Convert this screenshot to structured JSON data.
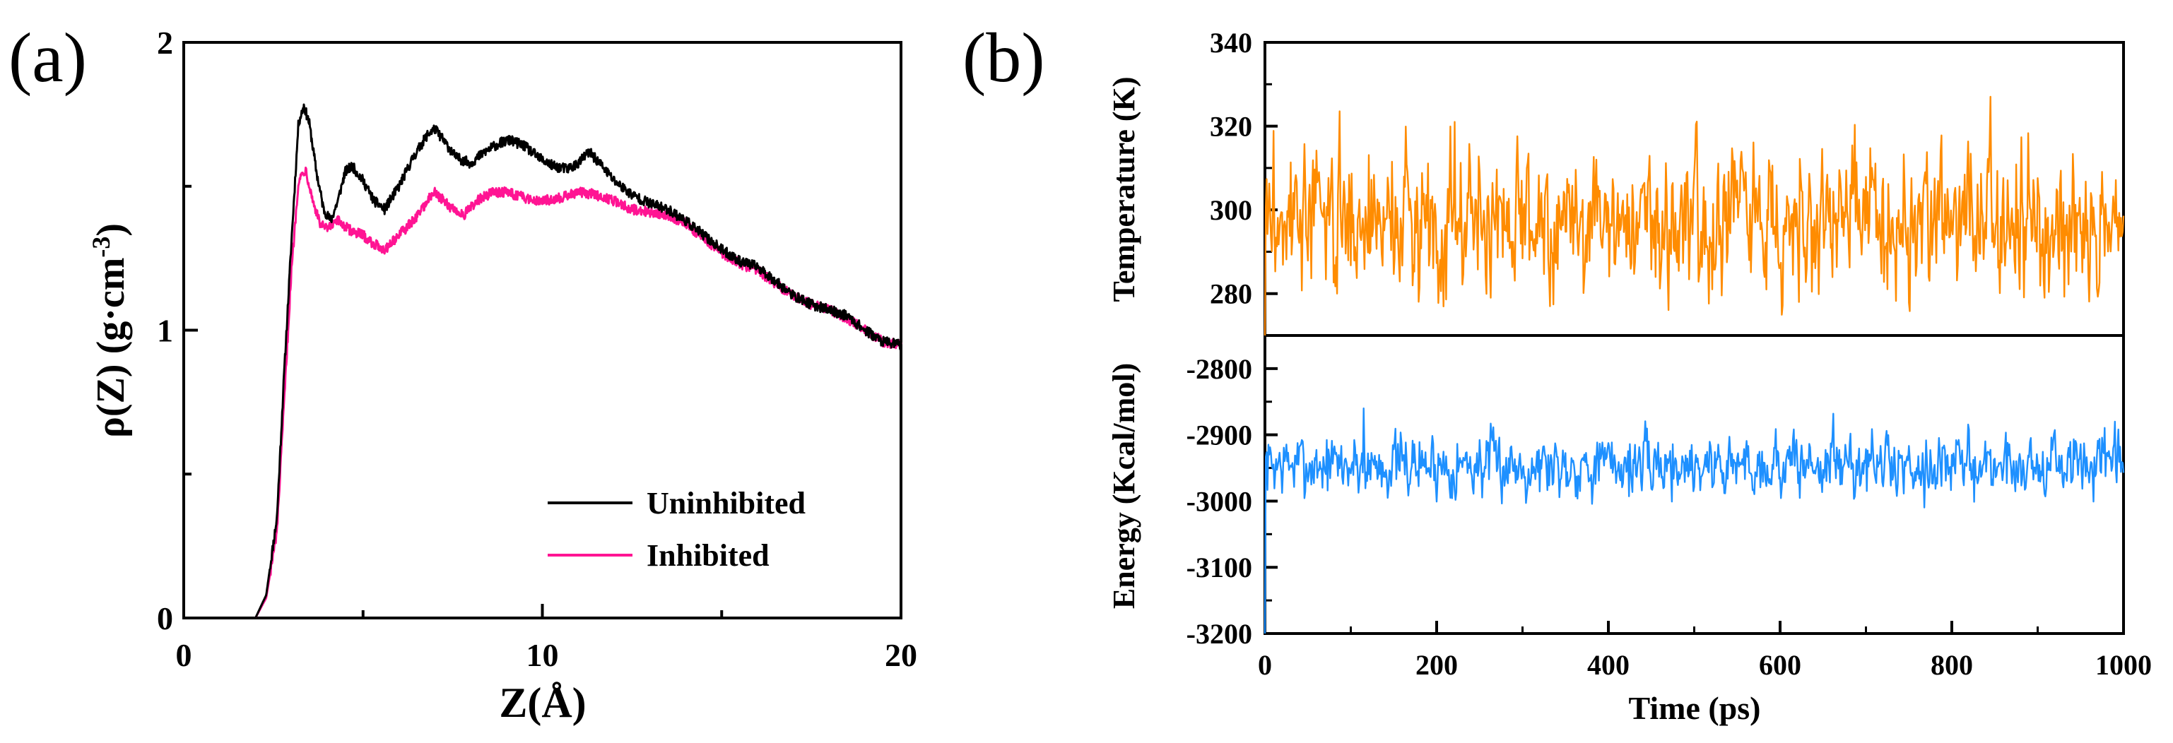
{
  "chart_data": [
    {
      "panel": "(a)",
      "type": "line",
      "xlabel": "Z(Å)",
      "ylabel_parts": [
        "ρ(Z) (g·cm",
        "-3",
        ")"
      ],
      "xlim": [
        0,
        20
      ],
      "ylim": [
        0,
        2
      ],
      "xticks": [
        "0",
        "10",
        "20"
      ],
      "yticks": [
        "0",
        "1",
        "2"
      ],
      "legend_position": "bottom-right",
      "series": [
        {
          "name": "Uninhibited",
          "color": "#000000",
          "x": [
            2.0,
            2.3,
            2.6,
            2.8,
            3.0,
            3.2,
            3.35,
            3.5,
            3.7,
            3.9,
            4.1,
            4.3,
            4.5,
            4.7,
            5.0,
            5.3,
            5.6,
            6.0,
            6.4,
            6.8,
            7.0,
            7.3,
            7.6,
            8.0,
            8.4,
            8.8,
            9.1,
            9.5,
            9.9,
            10.3,
            10.7,
            11.0,
            11.3,
            11.6,
            12.0,
            12.5,
            13.0,
            13.5,
            14.0,
            14.5,
            15.0,
            15.5,
            16.0,
            16.5,
            17.0,
            17.5,
            18.0,
            18.5,
            19.0,
            19.5,
            20.0
          ],
          "values": [
            0.0,
            0.08,
            0.35,
            0.85,
            1.3,
            1.72,
            1.78,
            1.72,
            1.55,
            1.42,
            1.38,
            1.45,
            1.55,
            1.57,
            1.52,
            1.45,
            1.42,
            1.5,
            1.6,
            1.68,
            1.7,
            1.65,
            1.6,
            1.58,
            1.62,
            1.65,
            1.66,
            1.64,
            1.6,
            1.57,
            1.56,
            1.58,
            1.62,
            1.58,
            1.52,
            1.47,
            1.44,
            1.42,
            1.38,
            1.33,
            1.28,
            1.24,
            1.22,
            1.17,
            1.12,
            1.09,
            1.07,
            1.05,
            1.0,
            0.96,
            0.95
          ]
        },
        {
          "name": "Inhibited",
          "color": "#ff1493",
          "x": [
            2.0,
            2.3,
            2.6,
            2.8,
            3.0,
            3.2,
            3.4,
            3.6,
            3.8,
            4.0,
            4.3,
            4.6,
            5.0,
            5.3,
            5.6,
            6.0,
            6.4,
            6.8,
            7.0,
            7.4,
            7.8,
            8.2,
            8.6,
            9.0,
            9.5,
            10.0,
            10.5,
            11.0,
            11.5,
            12.0,
            12.5,
            13.0,
            13.5,
            14.0,
            14.5,
            15.0,
            15.5,
            16.0,
            16.5,
            17.0,
            17.5,
            18.0,
            18.5,
            19.0,
            19.5,
            20.0
          ],
          "values": [
            0.0,
            0.07,
            0.3,
            0.75,
            1.2,
            1.52,
            1.56,
            1.45,
            1.37,
            1.35,
            1.38,
            1.35,
            1.33,
            1.3,
            1.28,
            1.33,
            1.38,
            1.45,
            1.48,
            1.43,
            1.4,
            1.45,
            1.48,
            1.48,
            1.46,
            1.45,
            1.46,
            1.48,
            1.47,
            1.45,
            1.42,
            1.41,
            1.4,
            1.37,
            1.32,
            1.27,
            1.23,
            1.21,
            1.16,
            1.12,
            1.09,
            1.07,
            1.04,
            1.0,
            0.96,
            0.95
          ]
        }
      ]
    },
    {
      "panel": "(b)",
      "type": "line",
      "xlabel": "Time (ps)",
      "xlim": [
        0,
        1000
      ],
      "xticks": [
        "0",
        "200",
        "400",
        "600",
        "800",
        "1000"
      ],
      "subplots": [
        {
          "ylabel": "Temperature (K)",
          "ylim": [
            270,
            340
          ],
          "yticks": [
            "280",
            "300",
            "320",
            "340"
          ],
          "color": "#ff8c00",
          "mean": 298,
          "fluctuation_amplitude": 8,
          "initial_value": 270,
          "notable_points": [
            {
              "x": 221,
              "y": 321
            },
            {
              "x": 622,
              "y": 278
            },
            {
              "x": 263,
              "y": 279
            }
          ]
        },
        {
          "ylabel": "Energy (Kcal/mol)",
          "ylim": [
            -3200,
            -2750
          ],
          "yticks": [
            "-2800",
            "-2900",
            "-3000",
            "-3100",
            "-3200"
          ],
          "color": "#1e90ff",
          "mean": -2945,
          "fluctuation_amplitude": 22,
          "initial_value": -3200,
          "notable_points": [
            {
              "x": 115,
              "y": -2860
            },
            {
              "x": 662,
              "y": -2868
            }
          ]
        }
      ]
    }
  ]
}
